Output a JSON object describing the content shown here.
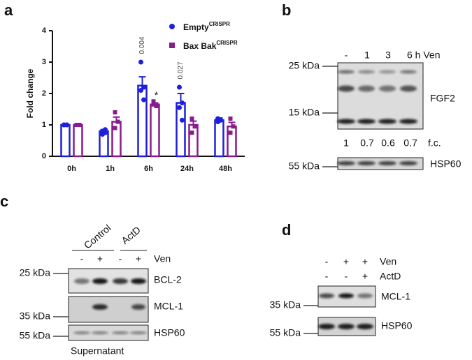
{
  "chart_data": {
    "type": "bar",
    "letter": "a",
    "ylabel": "Fold change",
    "categories": [
      "0h",
      "1h",
      "6h",
      "24h",
      "48h"
    ],
    "series": [
      {
        "name": "Empty",
        "superscript": "CRISPR",
        "color": "#1f1fdc",
        "marker": "circle",
        "values": [
          1.0,
          0.8,
          2.25,
          1.7,
          1.15
        ],
        "errors": [
          0.02,
          0.05,
          0.28,
          0.3,
          0.07
        ],
        "points": [
          [
            1,
            1,
            1,
            1
          ],
          [
            0.7,
            0.75,
            0.8,
            0.85
          ],
          [
            3.0,
            2.2,
            2.1,
            1.8
          ],
          [
            2.2,
            1.7,
            1.55,
            1.15
          ],
          [
            1.2,
            1.15,
            1.1,
            1.15
          ]
        ]
      },
      {
        "name": "Bax Bak",
        "superscript": "CRISPR",
        "color": "#8b1a8b",
        "marker": "square",
        "values": [
          1.0,
          1.1,
          1.65,
          1.0,
          0.95
        ],
        "errors": [
          0.02,
          0.15,
          0.05,
          0.12,
          0.13
        ],
        "points": [
          [
            1,
            1,
            1
          ],
          [
            1.4,
            1.1,
            0.9
          ],
          [
            1.65,
            1.6,
            1.75
          ],
          [
            1.2,
            0.95,
            0.75
          ],
          [
            1.2,
            0.95,
            0.75
          ]
        ]
      }
    ],
    "annotations": [
      "0.004",
      "*",
      "0.027"
    ],
    "ylim": [
      0,
      4
    ],
    "yticks": [
      0,
      1,
      2,
      3,
      4
    ]
  },
  "panel_b": {
    "letter": "b",
    "lanes": [
      "-",
      "1",
      "3",
      "6 h Ven"
    ],
    "markers": [
      "25 kDa",
      "15 kDa",
      "55 kDa"
    ],
    "proteins": [
      "FGF2",
      "HSP60"
    ],
    "fc": [
      "1",
      "0.7",
      "0.6",
      "0.7"
    ],
    "fc_label": "f.c."
  },
  "panel_c": {
    "letter": "c",
    "groups": [
      "Control",
      "ActD"
    ],
    "lanes": [
      "-",
      "+",
      "-",
      "+"
    ],
    "treatment": "Ven",
    "markers": [
      "25 kDa",
      "35 kDa",
      "55 kDa"
    ],
    "proteins": [
      "BCL-2",
      "MCL-1",
      "HSP60"
    ],
    "footer": "Supernatant"
  },
  "panel_d": {
    "letter": "d",
    "ven": [
      "-",
      "+",
      "+"
    ],
    "ven_label": "Ven",
    "actd": [
      "-",
      "-",
      "+"
    ],
    "actd_label": "ActD",
    "markers": [
      "35 kDa",
      "55 kDa"
    ],
    "proteins": [
      "MCL-1",
      "HSP60"
    ]
  }
}
